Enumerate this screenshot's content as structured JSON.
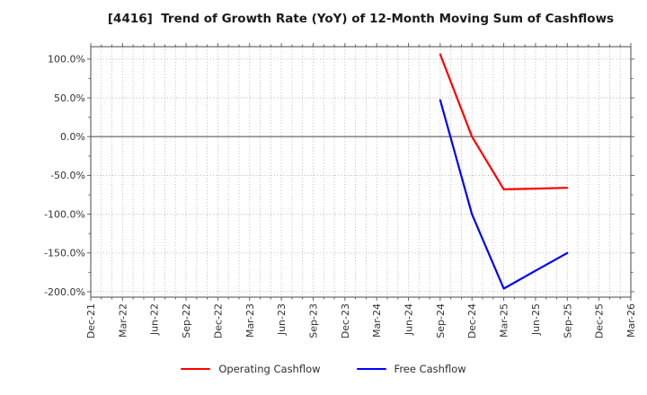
{
  "title": "[4416]  Trend of Growth Rate (YoY) of 12-Month Moving Sum of Cashflows",
  "chart_data": {
    "type": "line",
    "title": "[4416]  Trend of Growth Rate (YoY) of 12-Month Moving Sum of Cashflows",
    "xlabel": "",
    "ylabel": "",
    "grid": true,
    "legend_position": "bottom-center",
    "x_tick_labels": [
      "Dec-21",
      "Mar-22",
      "Jun-22",
      "Sep-22",
      "Dec-22",
      "Mar-23",
      "Jun-23",
      "Sep-23",
      "Dec-23",
      "Mar-24",
      "Jun-24",
      "Sep-24",
      "Dec-24",
      "Mar-25",
      "Jun-25",
      "Sep-25",
      "Dec-25",
      "Mar-26"
    ],
    "y_tick_labels": [
      "100.0%",
      "50.0%",
      "0.0%",
      "-50.0%",
      "-100.0%",
      "-150.0%",
      "-200.0%"
    ],
    "y_tick_values": [
      100,
      50,
      0,
      -50,
      -100,
      -150,
      -200
    ],
    "ylim": [
      -207,
      116
    ],
    "zero_line": true,
    "series": [
      {
        "name": "Operating Cashflow",
        "color": "#ff0000",
        "points": [
          {
            "x": "Sep-24",
            "y": 106
          },
          {
            "x": "Dec-24",
            "y": 0
          },
          {
            "x": "Mar-25",
            "y": -68
          },
          {
            "x": "Jun-25",
            "y": -67
          },
          {
            "x": "Sep-25",
            "y": -66
          }
        ]
      },
      {
        "name": "Free Cashflow",
        "color": "#0000ff",
        "points": [
          {
            "x": "Sep-24",
            "y": 47
          },
          {
            "x": "Dec-24",
            "y": -100
          },
          {
            "x": "Mar-25",
            "y": -196
          },
          {
            "x": "Jun-25",
            "y": -173
          },
          {
            "x": "Sep-25",
            "y": -150
          }
        ]
      }
    ]
  },
  "legend": {
    "items": [
      {
        "label": "Operating Cashflow",
        "color": "#ff0000"
      },
      {
        "label": "Free Cashflow",
        "color": "#0000ff"
      }
    ]
  },
  "colors": {
    "grid": "#b0b0b0",
    "zero_line": "#7a7a7a",
    "spine": "#5a5a5a",
    "tick": "#555555",
    "tick_label": "#333333"
  }
}
